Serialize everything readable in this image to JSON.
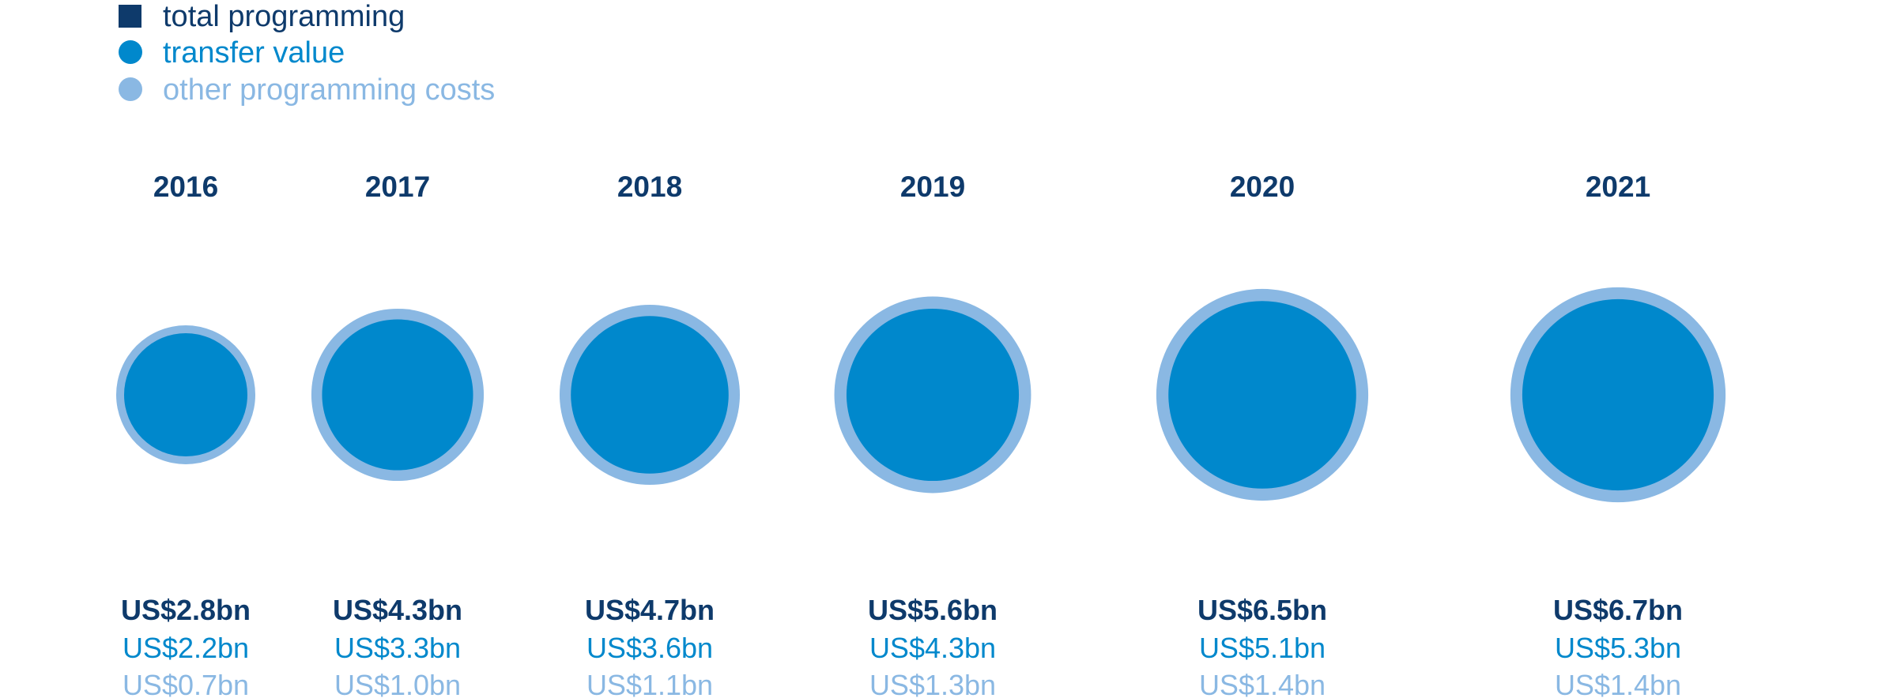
{
  "colors": {
    "total": "#0e3a6b",
    "transfer": "#0088cc",
    "other": "#8ab8e3"
  },
  "legend": [
    {
      "label": "total programming",
      "key": "total",
      "marker": "square"
    },
    {
      "label": "transfer value",
      "key": "transfer",
      "marker": "circle"
    },
    {
      "label": "other programming costs",
      "key": "other",
      "marker": "circle"
    }
  ],
  "chart_data": {
    "type": "bubble",
    "unit": "US$ billion",
    "categories": [
      "2016",
      "2017",
      "2018",
      "2019",
      "2020",
      "2021"
    ],
    "series": [
      {
        "name": "total programming",
        "values": [
          2.8,
          4.3,
          4.7,
          5.6,
          6.5,
          6.7
        ],
        "labels": [
          "US$2.8bn",
          "US$4.3bn",
          "US$4.7bn",
          "US$5.6bn",
          "US$6.5bn",
          "US$6.7bn"
        ]
      },
      {
        "name": "transfer value",
        "values": [
          2.2,
          3.3,
          3.6,
          4.3,
          5.1,
          5.3
        ],
        "labels": [
          "US$2.2bn",
          "US$3.3bn",
          "US$3.6bn",
          "US$4.3bn",
          "US$5.1bn",
          "US$5.3bn"
        ]
      },
      {
        "name": "other programming costs",
        "values": [
          0.7,
          1.0,
          1.1,
          1.3,
          1.4,
          1.4
        ],
        "labels": [
          "US$0.7bn",
          "US$1.0bn",
          "US$1.1bn",
          "US$1.3bn",
          "US$1.4bn",
          "US$1.4bn"
        ]
      }
    ]
  }
}
